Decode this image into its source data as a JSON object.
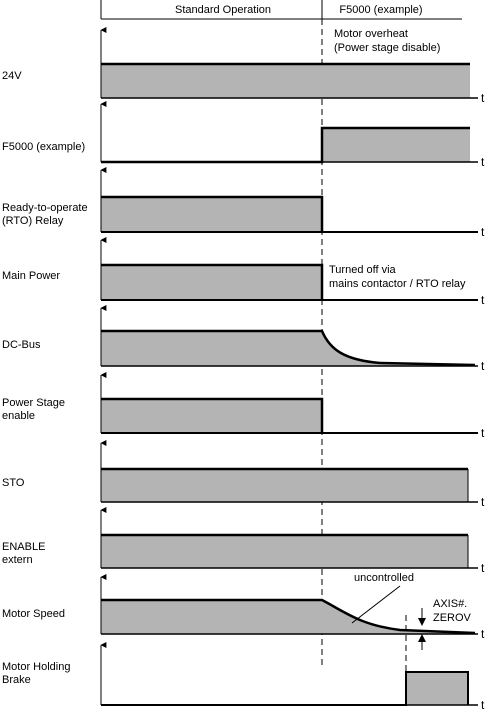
{
  "header": {
    "phase1": "Standard Operation",
    "phase2": "F5000 (example)"
  },
  "annotations": {
    "motor_overheat": [
      "Motor overheat",
      "(Power stage disable)"
    ],
    "turned_off": [
      "Turned off via",
      "mains contactor / RTO relay"
    ],
    "uncontrolled": "uncontrolled",
    "axis_zerov": [
      "AXIS#.",
      "ZEROV"
    ]
  },
  "time_axis_label": "t",
  "signals": [
    {
      "id": "24v",
      "label": [
        "24V"
      ]
    },
    {
      "id": "f5000",
      "label": [
        "F5000 (example)"
      ]
    },
    {
      "id": "rto",
      "label": [
        "Ready-to-operate",
        "(RTO) Relay"
      ]
    },
    {
      "id": "main-power",
      "label": [
        "Main Power"
      ]
    },
    {
      "id": "dc-bus",
      "label": [
        "DC-Bus"
      ]
    },
    {
      "id": "power-stage",
      "label": [
        "Power Stage",
        "enable"
      ]
    },
    {
      "id": "sto",
      "label": [
        "STO"
      ]
    },
    {
      "id": "enable-extern",
      "label": [
        "ENABLE",
        "extern"
      ]
    },
    {
      "id": "motor-speed",
      "label": [
        "Motor Speed"
      ]
    },
    {
      "id": "brake",
      "label": [
        "Motor Holding",
        "Brake"
      ]
    }
  ],
  "colors": {
    "fill": "#b4b4b4",
    "line": "#000000"
  }
}
